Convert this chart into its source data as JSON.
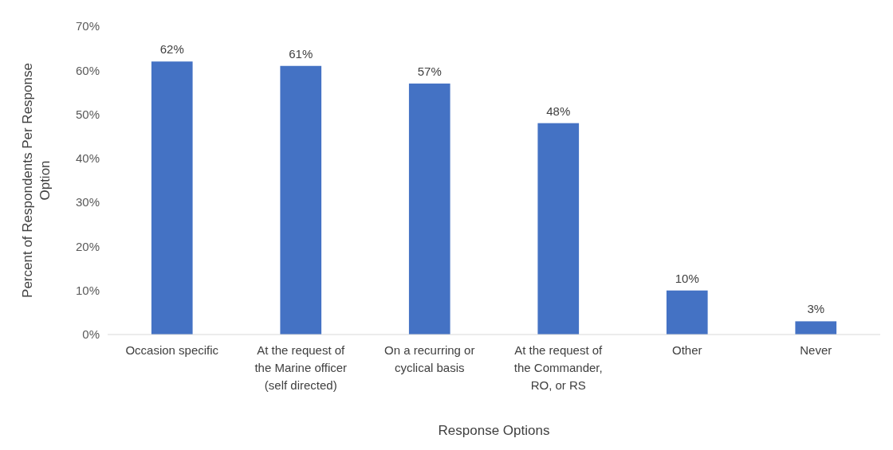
{
  "chart_data": {
    "type": "bar",
    "categories": [
      "Occasion specific",
      "At the request of the Marine officer (self directed)",
      "On a recurring or cyclical basis",
      "At the request of the Commander, RO, or RS",
      "Other",
      "Never"
    ],
    "values": [
      62,
      61,
      57,
      48,
      10,
      3
    ],
    "color": "#4472c4",
    "data_labels": true,
    "value_labels": [
      "62%",
      "61%",
      "57%",
      "48%",
      "10%",
      "3%"
    ],
    "ylim": [
      0,
      70
    ],
    "yticks": [
      {
        "value": 0,
        "label": "0%"
      },
      {
        "value": 10,
        "label": "10%"
      },
      {
        "value": 20,
        "label": "20%"
      },
      {
        "value": 30,
        "label": "30%"
      },
      {
        "value": 40,
        "label": "40%"
      },
      {
        "value": 50,
        "label": "50%"
      },
      {
        "value": 60,
        "label": "60%"
      },
      {
        "value": 70,
        "label": "70%"
      }
    ],
    "grid": false,
    "xlabel": "Response Options",
    "ylabel": "Percent of Respondents Per Response Option"
  }
}
